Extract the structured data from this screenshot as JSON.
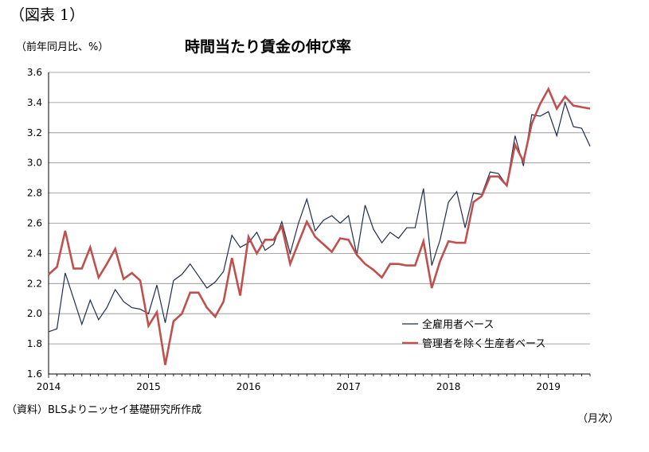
{
  "figure_label": "（図表 1）",
  "unit_label": "（前年同月比、%）",
  "source_note": "（資料）BLSよりニッセイ基礎研究所作成",
  "x_unit_label": "（月次）",
  "chart_data": {
    "type": "line",
    "title": "時間当たり賃金の伸び率",
    "ylabel": "（前年同月比、%）",
    "xlabel": "（月次）",
    "ylim": [
      1.6,
      3.6
    ],
    "yticks": [
      "1.6",
      "1.8",
      "2.0",
      "2.2",
      "2.4",
      "2.6",
      "2.8",
      "3.0",
      "3.2",
      "3.4",
      "3.6"
    ],
    "xlim": [
      0,
      65
    ],
    "xticks": [
      "2014",
      "2015",
      "2016",
      "2017",
      "2018",
      "2019"
    ],
    "grid": "horizontal",
    "legend_position": "lower-right",
    "colors": {
      "all_employees": "#1f2d4d",
      "production_workers": "#c0504d"
    },
    "series": [
      {
        "name": "全雇用者ベース",
        "values": [
          1.88,
          1.9,
          2.27,
          2.1,
          1.93,
          2.09,
          1.96,
          2.04,
          2.16,
          2.08,
          2.04,
          2.03,
          2.0,
          2.19,
          1.94,
          2.22,
          2.26,
          2.33,
          2.25,
          2.17,
          2.21,
          2.28,
          2.52,
          2.44,
          2.47,
          2.54,
          2.42,
          2.46,
          2.61,
          2.4,
          2.6,
          2.76,
          2.55,
          2.62,
          2.65,
          2.6,
          2.65,
          2.39,
          2.72,
          2.56,
          2.47,
          2.54,
          2.5,
          2.57,
          2.57,
          2.83,
          2.32,
          2.49,
          2.74,
          2.81,
          2.57,
          2.8,
          2.79,
          2.94,
          2.93,
          2.85,
          3.18,
          2.98,
          3.32,
          3.31,
          3.34,
          3.18,
          3.4,
          3.24,
          3.23,
          3.11
        ]
      },
      {
        "name": "管理者を除く生産者ベース",
        "values": [
          2.26,
          2.31,
          2.55,
          2.3,
          2.3,
          2.44,
          2.24,
          2.33,
          2.43,
          2.23,
          2.27,
          2.22,
          1.92,
          2.01,
          1.66,
          1.95,
          2.0,
          2.14,
          2.14,
          2.04,
          1.98,
          2.08,
          2.37,
          2.12,
          2.51,
          2.4,
          2.49,
          2.49,
          2.58,
          2.33,
          2.47,
          2.61,
          2.51,
          2.46,
          2.41,
          2.5,
          2.49,
          2.39,
          2.33,
          2.29,
          2.24,
          2.33,
          2.33,
          2.32,
          2.32,
          2.48,
          2.17,
          2.35,
          2.48,
          2.47,
          2.47,
          2.74,
          2.78,
          2.91,
          2.91,
          2.85,
          3.12,
          3.01,
          3.26,
          3.39,
          3.49,
          3.36,
          3.44,
          3.38,
          3.37,
          3.36
        ]
      }
    ]
  }
}
